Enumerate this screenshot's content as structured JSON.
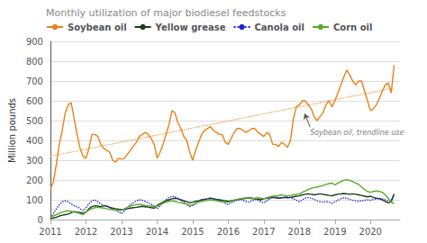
{
  "chart_data": {
    "type": "line",
    "title": "Monthly utilization of major biodiesel feedstocks",
    "ylabel": "Million pounds",
    "xlim": [
      2011.0,
      2020.83
    ],
    "xticks": [
      2011,
      2012,
      2013,
      2014,
      2015,
      2016,
      2017,
      2018,
      2019,
      2020
    ],
    "ylim": [
      0,
      900
    ],
    "yticks": [
      0,
      100,
      200,
      300,
      400,
      500,
      600,
      700,
      800,
      900
    ],
    "grid": true,
    "legend": "upper left",
    "x": [
      2011.0,
      2011.083,
      2011.167,
      2011.25,
      2011.333,
      2011.417,
      2011.5,
      2011.583,
      2011.667,
      2011.75,
      2011.833,
      2011.917,
      2012.0,
      2012.083,
      2012.167,
      2012.25,
      2012.333,
      2012.417,
      2012.5,
      2012.583,
      2012.667,
      2012.75,
      2012.833,
      2012.917,
      2013.0,
      2013.083,
      2013.167,
      2013.25,
      2013.333,
      2013.417,
      2013.5,
      2013.583,
      2013.667,
      2013.75,
      2013.833,
      2013.917,
      2014.0,
      2014.083,
      2014.167,
      2014.25,
      2014.333,
      2014.417,
      2014.5,
      2014.583,
      2014.667,
      2014.75,
      2014.833,
      2014.917,
      2015.0,
      2015.083,
      2015.167,
      2015.25,
      2015.333,
      2015.417,
      2015.5,
      2015.583,
      2015.667,
      2015.75,
      2015.833,
      2015.917,
      2016.0,
      2016.083,
      2016.167,
      2016.25,
      2016.333,
      2016.417,
      2016.5,
      2016.583,
      2016.667,
      2016.75,
      2016.833,
      2016.917,
      2017.0,
      2017.083,
      2017.167,
      2017.25,
      2017.333,
      2017.417,
      2017.5,
      2017.583,
      2017.667,
      2017.75,
      2017.833,
      2017.917,
      2018.0,
      2018.083,
      2018.167,
      2018.25,
      2018.333,
      2018.417,
      2018.5,
      2018.583,
      2018.667,
      2018.75,
      2018.833,
      2018.917,
      2019.0,
      2019.083,
      2019.167,
      2019.25,
      2019.333,
      2019.417,
      2019.5,
      2019.583,
      2019.667,
      2019.75,
      2019.833,
      2019.917,
      2020.0,
      2020.083,
      2020.167,
      2020.25,
      2020.333,
      2020.417,
      2020.5,
      2020.583,
      2020.667
    ],
    "series": [
      {
        "name": "Soybean oil",
        "color": "#E8821A",
        "line_style": "solid",
        "values": [
          155,
          190,
          280,
          380,
          450,
          540,
          580,
          590,
          510,
          430,
          360,
          320,
          310,
          360,
          430,
          430,
          420,
          380,
          360,
          350,
          340,
          300,
          290,
          310,
          305,
          310,
          330,
          350,
          370,
          390,
          420,
          430,
          440,
          430,
          410,
          380,
          310,
          340,
          380,
          430,
          480,
          550,
          540,
          490,
          460,
          420,
          400,
          340,
          300,
          350,
          390,
          430,
          450,
          460,
          470,
          450,
          440,
          430,
          430,
          390,
          380,
          410,
          440,
          460,
          460,
          450,
          440,
          450,
          460,
          460,
          440,
          430,
          420,
          440,
          430,
          380,
          380,
          370,
          390,
          380,
          365,
          400,
          510,
          570,
          580,
          600,
          600,
          580,
          560,
          520,
          500,
          520,
          540,
          580,
          600,
          570,
          600,
          640,
          680,
          720,
          755,
          730,
          700,
          680,
          700,
          700,
          650,
          600,
          550,
          560,
          580,
          610,
          650,
          680,
          690,
          640,
          780
        ]
      },
      {
        "name": "Yellow grease",
        "color": "#1a3a1a",
        "line_style": "solid",
        "values": [
          5,
          8,
          12,
          18,
          22,
          25,
          28,
          35,
          40,
          38,
          35,
          32,
          38,
          55,
          65,
          70,
          68,
          65,
          70,
          68,
          62,
          58,
          55,
          52,
          50,
          52,
          55,
          58,
          60,
          62,
          65,
          67,
          65,
          63,
          60,
          58,
          72,
          80,
          88,
          95,
          100,
          105,
          108,
          105,
          100,
          95,
          90,
          85,
          88,
          92,
          95,
          100,
          103,
          105,
          108,
          105,
          102,
          100,
          98,
          95,
          92,
          95,
          98,
          100,
          103,
          105,
          108,
          110,
          108,
          105,
          103,
          100,
          105,
          108,
          110,
          112,
          110,
          108,
          110,
          112,
          110,
          112,
          115,
          118,
          120,
          125,
          128,
          130,
          128,
          125,
          128,
          130,
          128,
          125,
          122,
          120,
          125,
          128,
          130,
          132,
          130,
          128,
          130,
          128,
          125,
          122,
          118,
          115,
          118,
          112,
          108,
          105,
          100,
          92,
          85,
          90,
          128
        ]
      },
      {
        "name": "Canola oil",
        "color": "#2222CC",
        "line_style": "dotted",
        "values": [
          8,
          30,
          55,
          75,
          90,
          95,
          90,
          80,
          70,
          65,
          55,
          45,
          60,
          80,
          95,
          100,
          90,
          78,
          72,
          68,
          60,
          55,
          48,
          38,
          30,
          45,
          60,
          75,
          85,
          95,
          100,
          98,
          92,
          85,
          78,
          68,
          55,
          70,
          85,
          100,
          112,
          118,
          115,
          108,
          98,
          88,
          78,
          65,
          72,
          80,
          88,
          95,
          100,
          105,
          108,
          105,
          100,
          95,
          90,
          82,
          75,
          85,
          92,
          98,
          102,
          98,
          92,
          88,
          95,
          102,
          98,
          90,
          85,
          95,
          105,
          115,
          118,
          112,
          108,
          115,
          118,
          112,
          105,
          98,
          90,
          100,
          108,
          112,
          108,
          102,
          95,
          90,
          88,
          92,
          88,
          82,
          90,
          98,
          105,
          110,
          108,
          102,
          98,
          95,
          92,
          95,
          98,
          100,
          98,
          102,
          105,
          108,
          105,
          100,
          95,
          98,
          128
        ]
      },
      {
        "name": "Corn oil",
        "color": "#5aaa2a",
        "line_style": "solid",
        "values": [
          12,
          18,
          25,
          32,
          38,
          42,
          45,
          42,
          38,
          35,
          30,
          25,
          38,
          48,
          55,
          60,
          62,
          60,
          58,
          55,
          52,
          50,
          48,
          45,
          48,
          55,
          62,
          68,
          72,
          75,
          78,
          75,
          72,
          70,
          68,
          65,
          68,
          75,
          82,
          88,
          92,
          95,
          92,
          88,
          85,
          82,
          78,
          72,
          75,
          82,
          88,
          92,
          95,
          98,
          100,
          98,
          95,
          92,
          90,
          88,
          88,
          92,
          98,
          102,
          105,
          108,
          110,
          108,
          105,
          108,
          110,
          108,
          105,
          110,
          115,
          118,
          120,
          122,
          125,
          122,
          120,
          122,
          125,
          128,
          130,
          138,
          145,
          152,
          158,
          162,
          165,
          168,
          172,
          178,
          182,
          185,
          175,
          185,
          192,
          198,
          202,
          198,
          192,
          185,
          178,
          165,
          152,
          142,
          138,
          142,
          145,
          142,
          138,
          125,
          108,
          88,
          80
        ]
      }
    ],
    "trendline": {
      "x": [
        2011.0,
        2020.667
      ],
      "values": [
        320,
        665
      ],
      "color": "#E8821A",
      "line_style": "dotted"
    },
    "annotations": [
      {
        "text": "Soybean oil, trendline use",
        "x": 2018.15,
        "y": 535,
        "text_x": 2018.3,
        "text_y": 468
      }
    ]
  }
}
